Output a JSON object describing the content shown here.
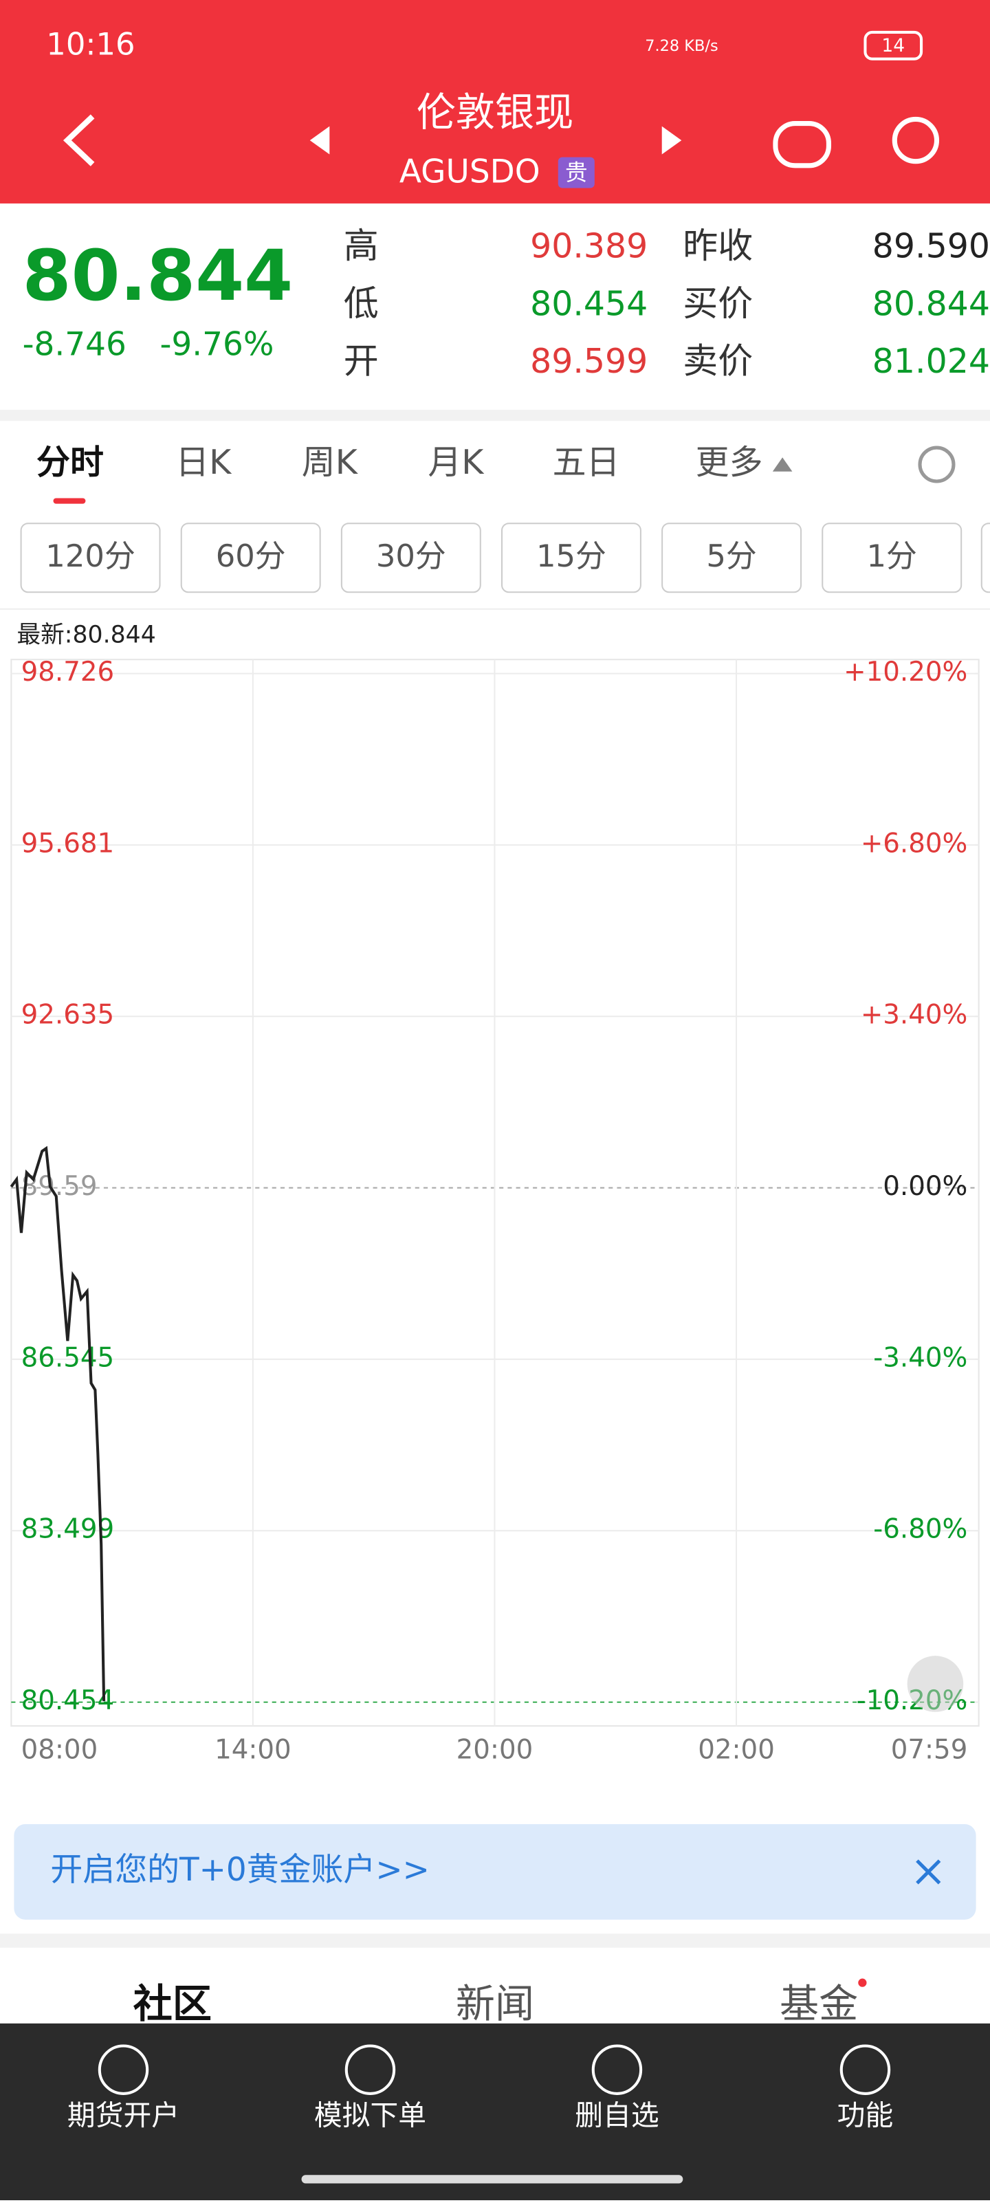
{
  "status_bar": {
    "time": "10:16",
    "network_speed": "7.28 KB/s",
    "battery": "14"
  },
  "header": {
    "title": "伦敦银现",
    "code": "AGUSDO",
    "badge": "贵"
  },
  "quote": {
    "price": "80.844",
    "change": "-8.746",
    "change_pct": "-9.76%",
    "stats": [
      {
        "label": "高",
        "value": "90.389"
      },
      {
        "label": "低",
        "value": "80.454"
      },
      {
        "label": "开",
        "value": "89.599"
      },
      {
        "label": "昨收",
        "value": "89.590"
      },
      {
        "label": "买价",
        "value": "80.844"
      },
      {
        "label": "卖价",
        "value": "81.024"
      }
    ]
  },
  "tabs": [
    "分时",
    "日K",
    "周K",
    "月K",
    "五日",
    "更多"
  ],
  "periods": [
    "120分",
    "60分",
    "30分",
    "15分",
    "5分",
    "1分"
  ],
  "latest": "最新:80.844",
  "chart_data": {
    "type": "line",
    "x": [
      0,
      8,
      15,
      23,
      33,
      46,
      52,
      58,
      67,
      75,
      84,
      92,
      98,
      104,
      113,
      119,
      125,
      129,
      134,
      138
    ],
    "series": [
      {
        "color": "#222222",
        "values": [
          89.61,
          89.74,
          88.79,
          89.86,
          89.74,
          90.24,
          90.29,
          89.61,
          89.44,
          88.12,
          86.87,
          88.04,
          87.94,
          87.62,
          87.75,
          86.12,
          86.0,
          84.88,
          83.26,
          80.47
        ]
      }
    ],
    "xlim": [
      0,
      1439
    ],
    "xticks": [
      {
        "value": 0,
        "label": "08:00"
      },
      {
        "value": 360,
        "label": "14:00"
      },
      {
        "value": 720,
        "label": "20:00"
      },
      {
        "value": 1080,
        "label": "02:00"
      },
      {
        "value": 1439,
        "label": "07:59"
      }
    ],
    "ylim": [
      80.454,
      98.726
    ],
    "yticks": [
      98.726,
      95.681,
      92.635,
      89.59,
      86.545,
      83.499,
      80.454
    ],
    "y2lim": [
      -10.2,
      10.2
    ],
    "y2ticks": [
      {
        "value": 10.2,
        "label": "+10.20%"
      },
      {
        "value": 6.8,
        "label": "+6.80%"
      },
      {
        "value": 3.4,
        "label": "+3.40%"
      },
      {
        "value": 0,
        "label": "0.00%"
      },
      {
        "value": -3.4,
        "label": "-3.40%"
      },
      {
        "value": -6.8,
        "label": "-6.80%"
      },
      {
        "value": -10.2,
        "label": "-10.20%"
      }
    ],
    "grid": true
  },
  "banner": {
    "text": "开启您的T+0黄金账户>>"
  },
  "content_tabs": [
    "社区",
    "新闻",
    "基金"
  ],
  "nav": [
    "期货开户",
    "模拟下单",
    "删自选",
    "功能"
  ]
}
